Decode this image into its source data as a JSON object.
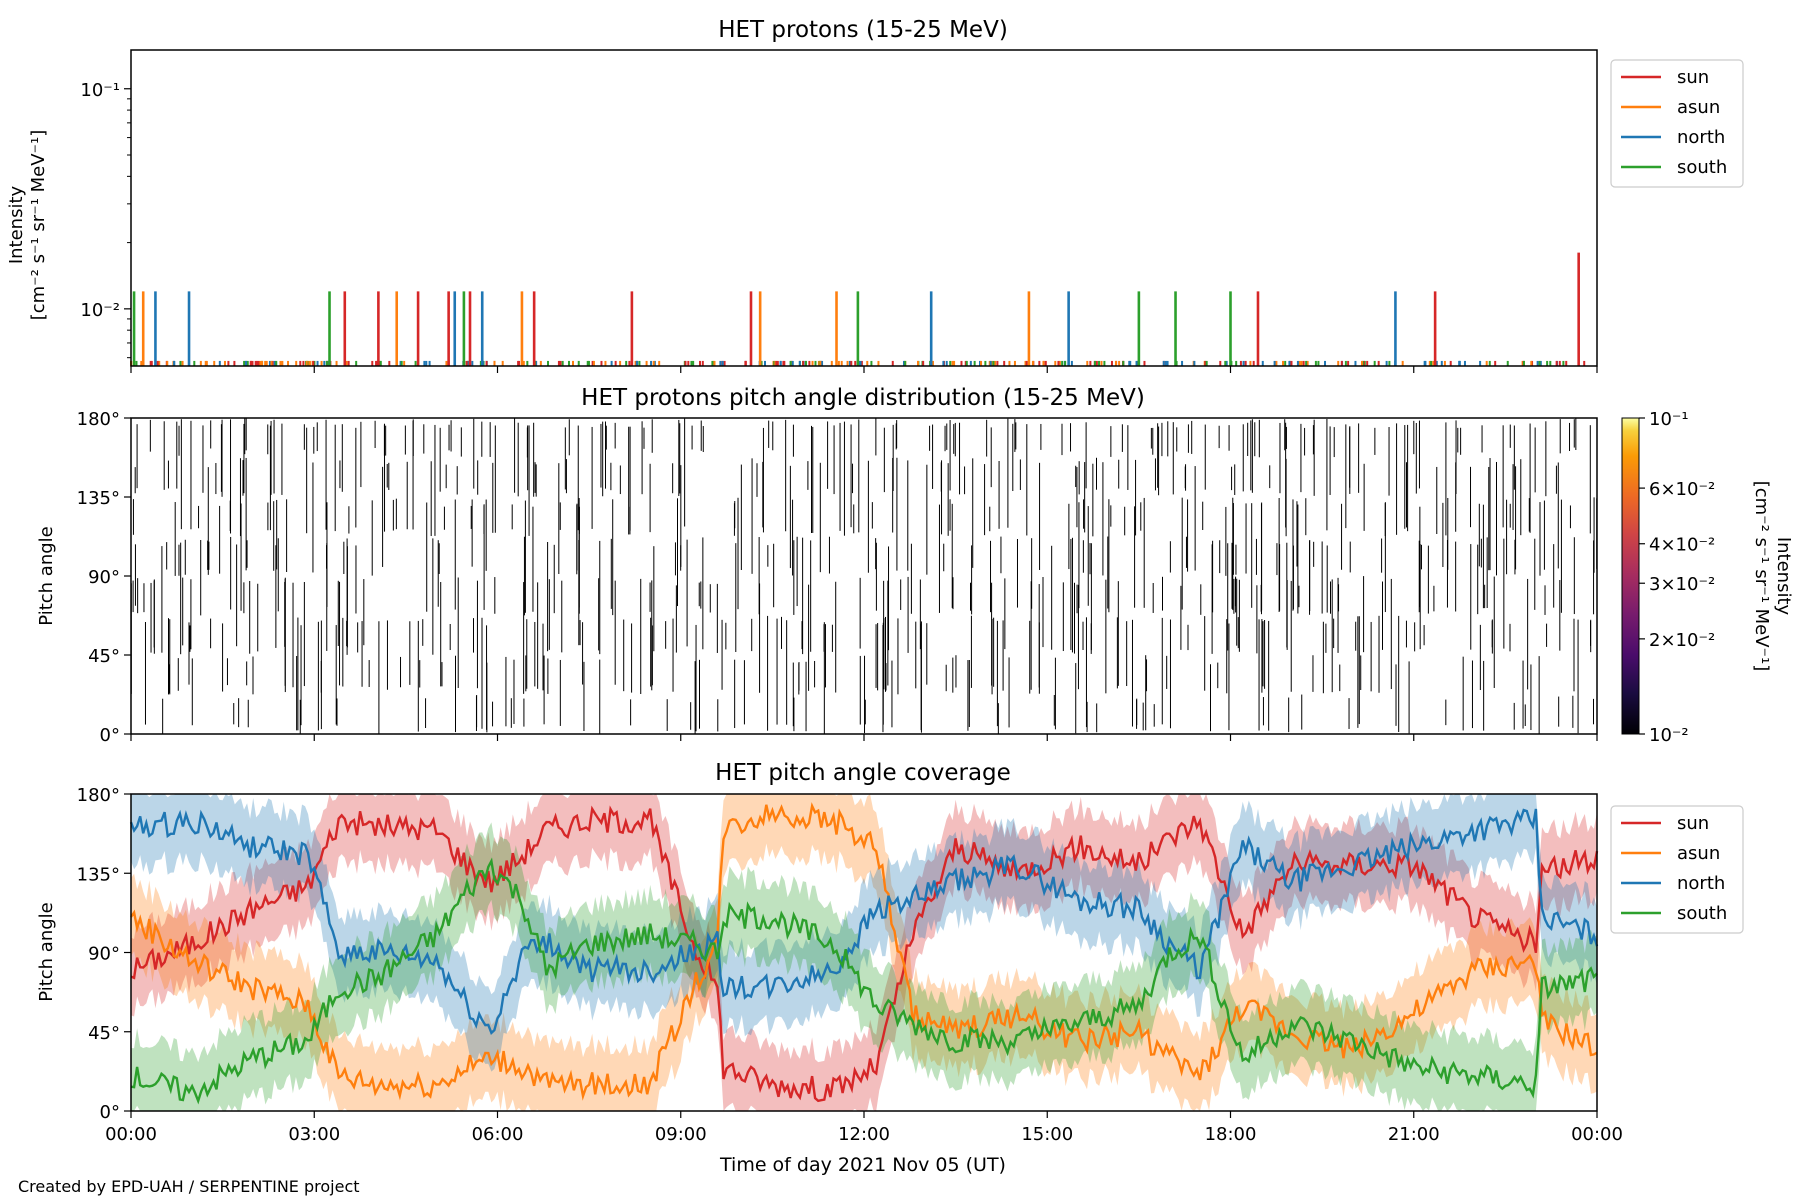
{
  "footer": {
    "credit": "Created by EPD-UAH / SERPENTINE project"
  },
  "colors": {
    "sun": "#d62728",
    "asun": "#ff7f0e",
    "north": "#1f77b4",
    "south": "#2ca02c",
    "axis": "#000000"
  },
  "chart_data": [
    {
      "type": "line",
      "title": "HET protons (15-25 MeV)",
      "ylabel": "Intensity",
      "ylabel_unit": "[cm⁻² s⁻¹ sr⁻¹ MeV⁻¹]",
      "yscale": "log",
      "ylim": [
        0.0055,
        0.15
      ],
      "yticks": [
        {
          "value": 0.1,
          "label": "10⁻¹"
        },
        {
          "value": 0.01,
          "label": "10⁻²"
        }
      ],
      "xlim_hours": [
        0,
        24
      ],
      "legend": "outside-top-right",
      "series": [
        {
          "name": "sun",
          "color": "#d62728",
          "spikes": [
            {
              "t": 3.5,
              "v": 0.012
            },
            {
              "t": 4.05,
              "v": 0.012
            },
            {
              "t": 4.7,
              "v": 0.012
            },
            {
              "t": 5.2,
              "v": 0.012
            },
            {
              "t": 5.55,
              "v": 0.012
            },
            {
              "t": 6.6,
              "v": 0.012
            },
            {
              "t": 8.2,
              "v": 0.012
            },
            {
              "t": 10.15,
              "v": 0.012
            },
            {
              "t": 18.45,
              "v": 0.012
            },
            {
              "t": 21.35,
              "v": 0.012
            },
            {
              "t": 23.7,
              "v": 0.018
            }
          ]
        },
        {
          "name": "asun",
          "color": "#ff7f0e",
          "spikes": [
            {
              "t": 0.2,
              "v": 0.012
            },
            {
              "t": 4.35,
              "v": 0.012
            },
            {
              "t": 6.4,
              "v": 0.012
            },
            {
              "t": 10.3,
              "v": 0.012
            },
            {
              "t": 11.55,
              "v": 0.012
            },
            {
              "t": 14.7,
              "v": 0.012
            }
          ]
        },
        {
          "name": "north",
          "color": "#1f77b4",
          "spikes": [
            {
              "t": 0.4,
              "v": 0.012
            },
            {
              "t": 0.95,
              "v": 0.012
            },
            {
              "t": 5.3,
              "v": 0.012
            },
            {
              "t": 5.75,
              "v": 0.012
            },
            {
              "t": 13.1,
              "v": 0.012
            },
            {
              "t": 15.35,
              "v": 0.012
            },
            {
              "t": 20.7,
              "v": 0.012
            }
          ]
        },
        {
          "name": "south",
          "color": "#2ca02c",
          "spikes": [
            {
              "t": 0.05,
              "v": 0.012
            },
            {
              "t": 3.25,
              "v": 0.012
            },
            {
              "t": 5.45,
              "v": 0.012
            },
            {
              "t": 11.9,
              "v": 0.012
            },
            {
              "t": 16.5,
              "v": 0.012
            },
            {
              "t": 17.1,
              "v": 0.012
            },
            {
              "t": 18.0,
              "v": 0.012
            }
          ]
        }
      ]
    },
    {
      "type": "heatmap",
      "title": "HET protons pitch angle distribution (15-25 MeV)",
      "ylabel": "Pitch angle",
      "ylim_deg": [
        0,
        180
      ],
      "yticks": [
        "0°",
        "45°",
        "90°",
        "135°",
        "180°"
      ],
      "xlim_hours": [
        0,
        24
      ],
      "colorbar": {
        "label": "Intensity",
        "unit": "[cm⁻² s⁻¹ sr⁻¹ MeV⁻¹]",
        "scale": "log",
        "range": [
          0.01,
          0.1
        ],
        "colormap": "inferno",
        "ticks": [
          {
            "value": 0.1,
            "label": "10⁻¹"
          },
          {
            "value": 0.06,
            "label": "6×10⁻²"
          },
          {
            "value": 0.04,
            "label": "4×10⁻²"
          },
          {
            "value": 0.03,
            "label": "3×10⁻²"
          },
          {
            "value": 0.02,
            "label": "2×10⁻²"
          },
          {
            "value": 0.01,
            "label": "10⁻²"
          }
        ]
      },
      "note": "mostly empty (white) field crossed by many thin black vertical lines"
    },
    {
      "type": "line",
      "title": "HET pitch angle coverage",
      "xlabel": "Time of day 2021 Nov 05 (UT)",
      "ylabel": "Pitch angle",
      "ylim_deg": [
        0,
        180
      ],
      "yticks": [
        "0°",
        "45°",
        "90°",
        "135°",
        "180°"
      ],
      "xticks": [
        "00:00",
        "03:00",
        "06:00",
        "09:00",
        "12:00",
        "15:00",
        "18:00",
        "21:00",
        "00:00"
      ],
      "xlim_hours": [
        0,
        24
      ],
      "legend": "outside-top-right",
      "band_halfwidth_deg": 22,
      "series": [
        {
          "name": "sun",
          "color": "#d62728",
          "t": [
            0,
            1,
            2,
            2.9,
            3.4,
            4,
            5,
            5.5,
            5.9,
            6.4,
            6.8,
            7.5,
            8.5,
            9.2,
            9.6,
            9.7,
            10.5,
            11.5,
            12.2,
            12.8,
            13.5,
            14.5,
            15.5,
            16.5,
            17,
            17.5,
            18.2,
            19,
            20,
            21,
            22,
            23,
            23.1,
            24
          ],
          "v": [
            80,
            95,
            115,
            128,
            165,
            162,
            160,
            140,
            130,
            145,
            160,
            165,
            165,
            95,
            70,
            25,
            15,
            12,
            25,
            100,
            150,
            135,
            150,
            140,
            155,
            165,
            100,
            140,
            140,
            140,
            110,
            95,
            135,
            145
          ]
        },
        {
          "name": "asun",
          "color": "#ff7f0e",
          "t": [
            0,
            1,
            2,
            2.9,
            3.4,
            4,
            5,
            5.5,
            5.9,
            6.4,
            6.8,
            7.5,
            8.5,
            9.2,
            9.6,
            9.7,
            10.5,
            11.5,
            12.2,
            12.8,
            13.5,
            14.5,
            15.5,
            16.5,
            17,
            17.5,
            18.2,
            19,
            20,
            21,
            22,
            23,
            23.1,
            24
          ],
          "v": [
            110,
            85,
            70,
            60,
            20,
            15,
            15,
            25,
            30,
            25,
            15,
            15,
            15,
            70,
            95,
            160,
            170,
            165,
            150,
            55,
            45,
            55,
            40,
            45,
            30,
            20,
            60,
            45,
            35,
            55,
            80,
            85,
            50,
            35
          ]
        },
        {
          "name": "north",
          "color": "#1f77b4",
          "t": [
            0,
            1,
            2,
            2.9,
            3.4,
            4,
            5,
            5.5,
            5.9,
            6.4,
            6.8,
            7.5,
            8.5,
            9.2,
            9.6,
            9.7,
            10.5,
            11.5,
            12.2,
            12.8,
            13.5,
            14.5,
            15.5,
            16.5,
            17,
            17.5,
            18.2,
            19,
            20,
            21,
            22,
            23,
            23.1,
            24
          ],
          "v": [
            160,
            165,
            150,
            145,
            90,
            90,
            85,
            60,
            45,
            90,
            95,
            80,
            80,
            90,
            95,
            70,
            70,
            80,
            115,
            120,
            130,
            140,
            120,
            115,
            95,
            80,
            150,
            130,
            140,
            150,
            160,
            165,
            110,
            100
          ]
        },
        {
          "name": "south",
          "color": "#2ca02c",
          "t": [
            0,
            1,
            2,
            2.9,
            3.4,
            4,
            5,
            5.5,
            5.9,
            6.4,
            6.8,
            7.5,
            8.5,
            9.2,
            9.6,
            9.7,
            10.5,
            11.5,
            12.2,
            12.8,
            13.5,
            14.5,
            15.5,
            16.5,
            17,
            17.5,
            18.2,
            19,
            20,
            21,
            22,
            23,
            23.1,
            24
          ],
          "v": [
            20,
            10,
            30,
            40,
            70,
            75,
            100,
            125,
            140,
            120,
            80,
            95,
            100,
            95,
            90,
            110,
            110,
            95,
            60,
            50,
            40,
            40,
            50,
            60,
            90,
            100,
            30,
            50,
            40,
            25,
            20,
            15,
            70,
            75
          ]
        }
      ]
    }
  ]
}
